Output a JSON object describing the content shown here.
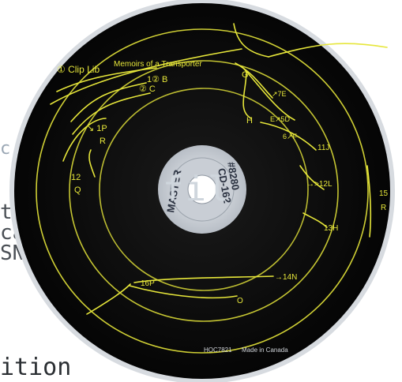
{
  "background": {
    "lines": [
      "c",
      "t",
      "ca",
      "SN",
      "ition"
    ],
    "ghost": "fil"
  },
  "disc": {
    "handwriting": {
      "title": "Memoirs of a Transporter",
      "hub_lines": [
        "#8280",
        "CD-162",
        "MASTER"
      ],
      "labels": [
        "① Clip Lib",
        "1② B",
        "② C",
        "↘ 1P",
        "R",
        "12",
        "Q",
        "G",
        "H",
        "↗7E",
        "E↗5D",
        "6↗F",
        "11J",
        "→>12L",
        "13H",
        "→14N",
        "16P",
        "O",
        "15",
        "R"
      ]
    },
    "print": {
      "code": "HOC7821",
      "country": "Made in Canada"
    }
  },
  "colors": {
    "disc": "#0b0b0b",
    "ink": "#e6e63a",
    "hub": "#d7dbe0"
  }
}
